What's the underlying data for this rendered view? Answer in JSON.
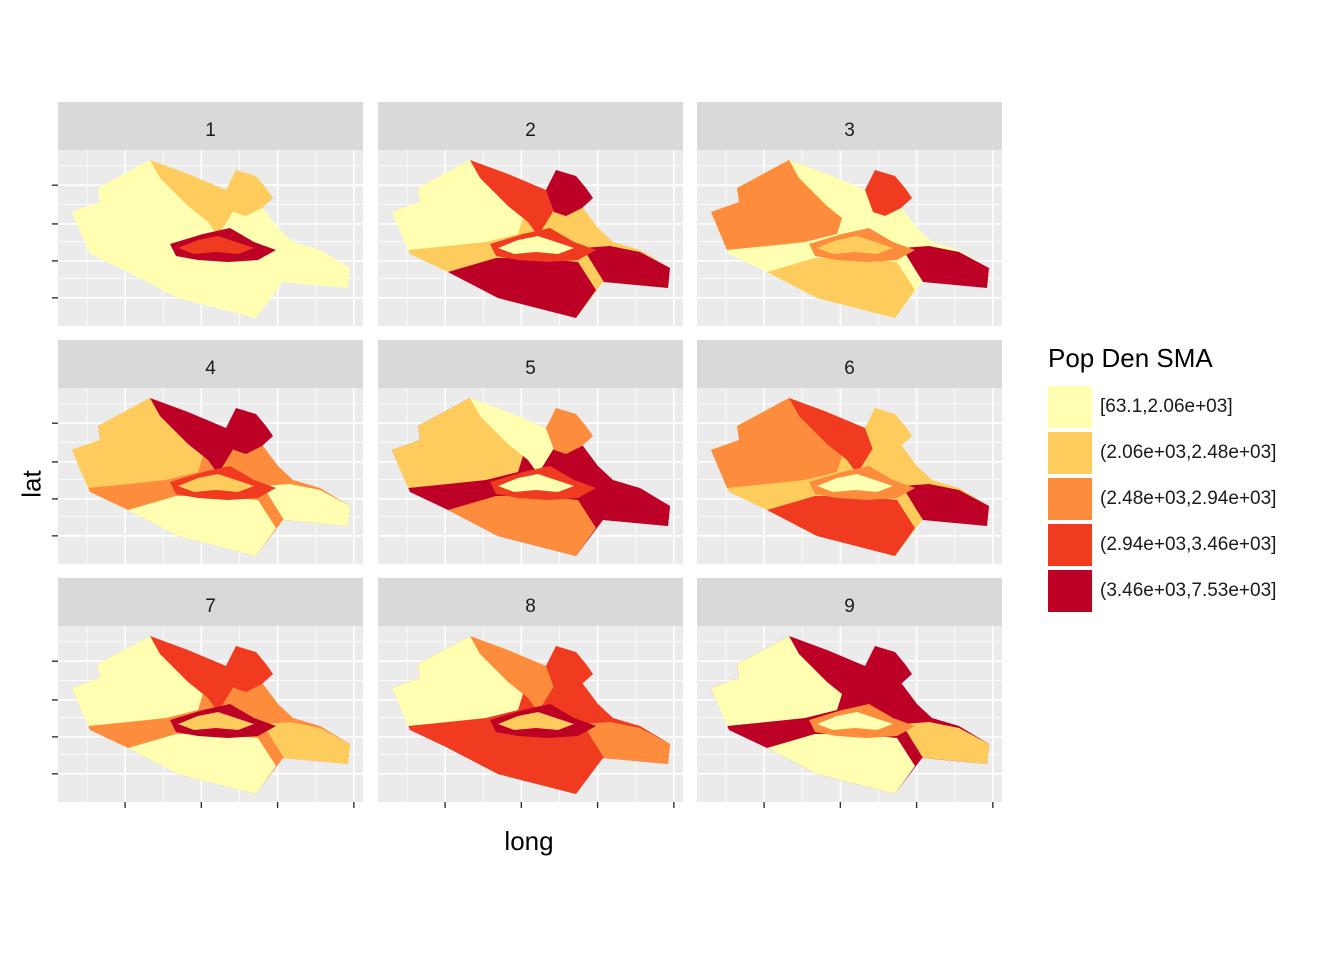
{
  "colors": {
    "panel_bg": "#ebebeb",
    "strip_bg": "#d9d9d9",
    "grid": "#ffffff",
    "classes": [
      "#ffffb2",
      "#fecc5c",
      "#fd8d3c",
      "#f03b20",
      "#bd0026"
    ]
  },
  "axes": {
    "x_title": "long",
    "y_title": "lat",
    "tick_labels_shown": false
  },
  "legend": {
    "title": "Pop Den SMA",
    "placement": "right",
    "items": [
      {
        "label": "[63.1,2.06e+03]",
        "class": 0
      },
      {
        "label": "(2.06e+03,2.48e+03]",
        "class": 1
      },
      {
        "label": "(2.48e+03,2.94e+03]",
        "class": 2
      },
      {
        "label": "(2.94e+03,3.46e+03]",
        "class": 3
      },
      {
        "label": "(3.46e+03,7.53e+03]",
        "class": 4
      }
    ]
  },
  "facets": [
    {
      "label": "1",
      "classes": {
        "outer": 0,
        "west": 0,
        "south": 0,
        "east": 0,
        "north": 1,
        "northeast": 1,
        "core": 4,
        "ring": 3
      }
    },
    {
      "label": "2",
      "classes": {
        "outer": 1,
        "west": 0,
        "south": 4,
        "east": 4,
        "north": 3,
        "northeast": 4,
        "core": 3,
        "ring": 0
      }
    },
    {
      "label": "3",
      "classes": {
        "outer": 0,
        "west": 2,
        "south": 1,
        "east": 4,
        "north": 0,
        "northeast": 3,
        "core": 2,
        "ring": 1
      }
    },
    {
      "label": "4",
      "classes": {
        "outer": 2,
        "west": 1,
        "south": 0,
        "east": 0,
        "north": 4,
        "northeast": 4,
        "core": 3,
        "ring": 1
      }
    },
    {
      "label": "5",
      "classes": {
        "outer": 4,
        "west": 1,
        "south": 2,
        "east": 4,
        "north": 0,
        "northeast": 2,
        "core": 3,
        "ring": 0
      }
    },
    {
      "label": "6",
      "classes": {
        "outer": 1,
        "west": 2,
        "south": 3,
        "east": 4,
        "north": 3,
        "northeast": 1,
        "core": 2,
        "ring": 0
      }
    },
    {
      "label": "7",
      "classes": {
        "outer": 2,
        "west": 0,
        "south": 0,
        "east": 1,
        "north": 3,
        "northeast": 3,
        "core": 4,
        "ring": 1
      }
    },
    {
      "label": "8",
      "classes": {
        "outer": 3,
        "west": 0,
        "south": 3,
        "east": 2,
        "north": 2,
        "northeast": 3,
        "core": 4,
        "ring": 1
      }
    },
    {
      "label": "9",
      "classes": {
        "outer": 4,
        "west": 0,
        "south": 0,
        "east": 1,
        "north": 4,
        "northeast": 4,
        "core": 2,
        "ring": 0
      }
    }
  ]
}
